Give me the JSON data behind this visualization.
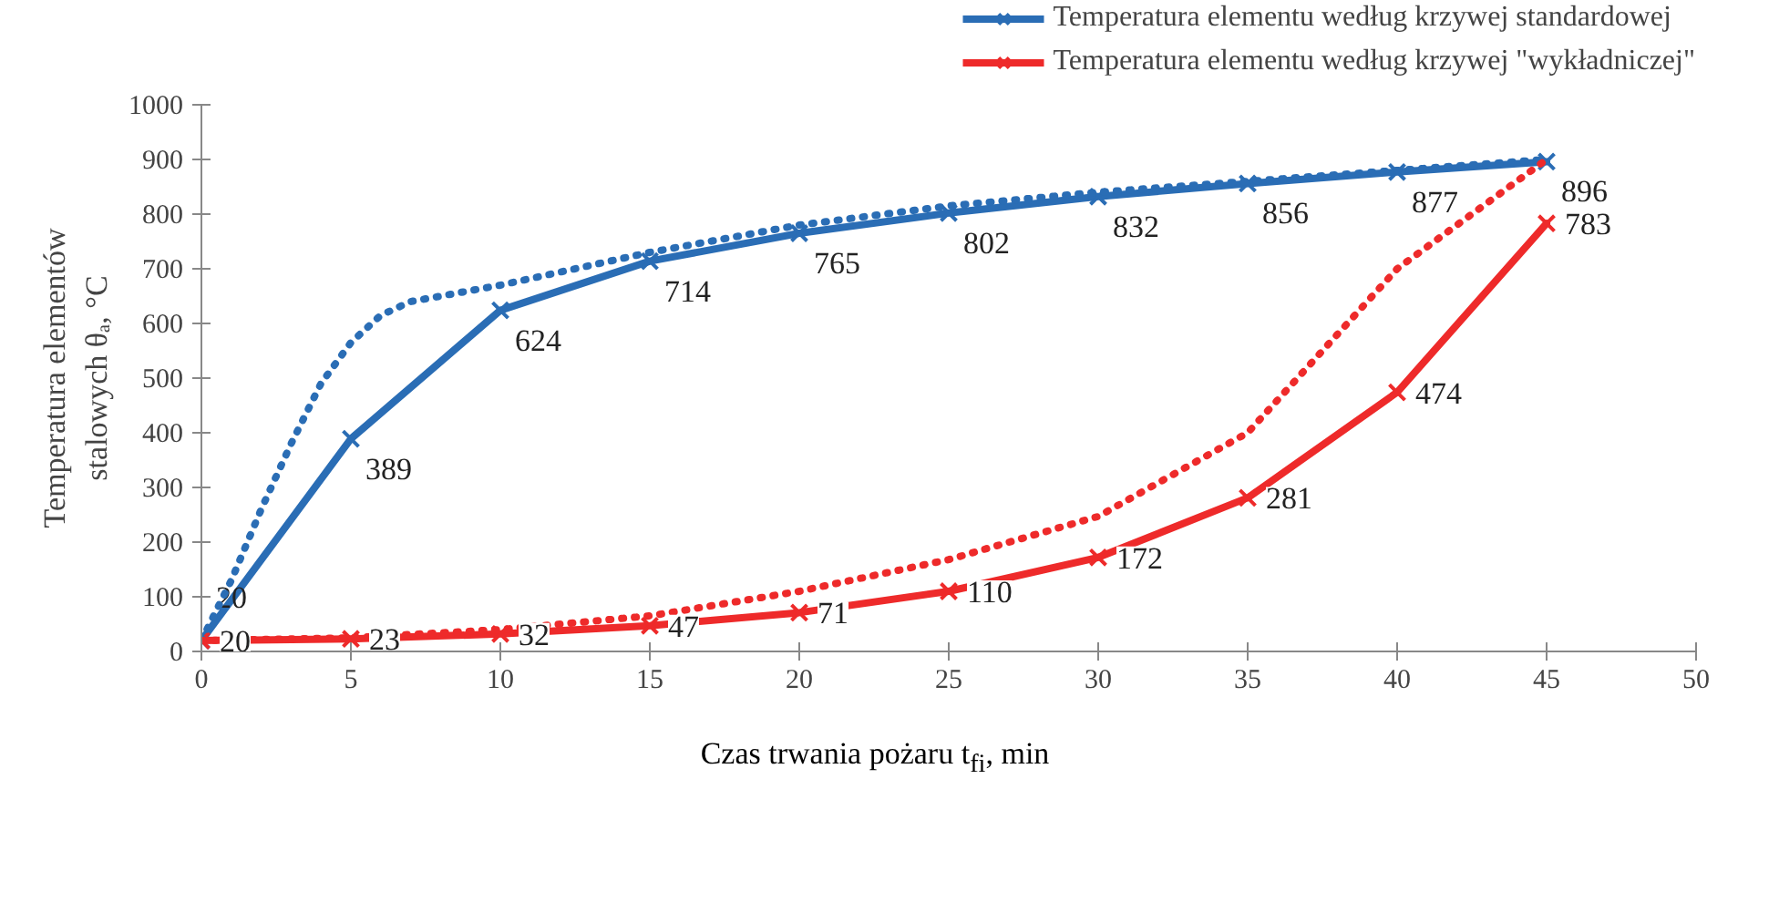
{
  "chart_data": {
    "type": "line",
    "xlabel": "Czas trwania pożaru t$_{fi}$, min",
    "ylabel": "Temperatura elementów\nstalowych θₐ, °C",
    "x": [
      0,
      5,
      10,
      15,
      20,
      25,
      30,
      35,
      40,
      45
    ],
    "series": [
      {
        "name": "Temperatura elementu według krzywej standardowej",
        "color": "#2a6db5",
        "values": [
          20,
          389,
          624,
          714,
          765,
          802,
          832,
          856,
          877,
          896
        ],
        "marker": "cross",
        "line_style": "solid",
        "data_labels": true
      },
      {
        "name": "Temperatura elementu według krzywej \"wykładniczej\"",
        "color": "#ee2a2a",
        "values": [
          20,
          23,
          32,
          47,
          71,
          110,
          172,
          281,
          474,
          783
        ],
        "marker": "cross",
        "line_style": "solid",
        "data_labels": true
      },
      {
        "color": "#2a6db5",
        "x": [
          0,
          1,
          2,
          3,
          4,
          5,
          6,
          7,
          10,
          15,
          20,
          25,
          30,
          35,
          40,
          45
        ],
        "values": [
          20,
          130,
          260,
          380,
          490,
          565,
          615,
          640,
          670,
          730,
          780,
          815,
          840,
          860,
          880,
          900
        ],
        "marker": "none",
        "line_style": "dotted"
      },
      {
        "color": "#ee2a2a",
        "x": [
          0,
          5,
          10,
          15,
          20,
          25,
          30,
          35,
          40,
          45
        ],
        "values": [
          20,
          25,
          40,
          65,
          110,
          168,
          247,
          400,
          700,
          900
        ],
        "marker": "none",
        "line_style": "dotted"
      }
    ],
    "xlim": [
      0,
      50
    ],
    "ylim": [
      0,
      1000
    ],
    "xticks": [
      0,
      5,
      10,
      15,
      20,
      25,
      30,
      35,
      40,
      45,
      50
    ],
    "yticks": [
      0,
      100,
      200,
      300,
      400,
      500,
      600,
      700,
      800,
      900,
      1000
    ],
    "grid": false,
    "legend": "top right"
  }
}
